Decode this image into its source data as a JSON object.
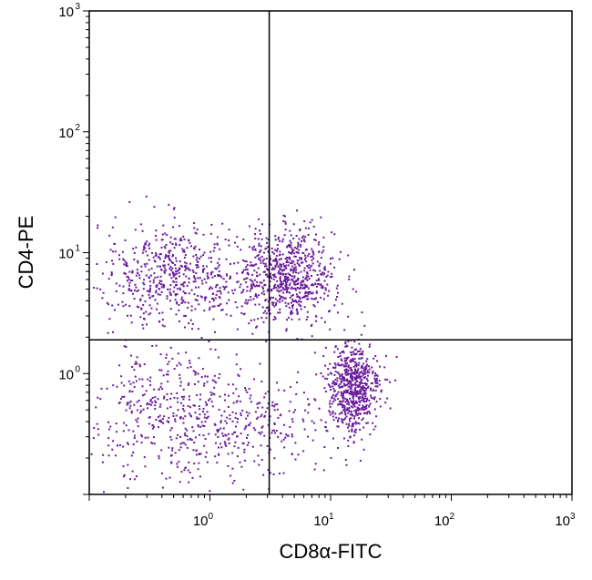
{
  "chart_data": {
    "type": "scatter",
    "title": "",
    "xlabel": "CD8α-FITC",
    "ylabel": "CD4-PE",
    "x_scale": "log",
    "y_scale": "log",
    "xlim": [
      0.1,
      1000
    ],
    "ylim": [
      0.1,
      1000
    ],
    "x_tick_labels": [
      {
        "value": 1,
        "base": "10",
        "exp": "0"
      },
      {
        "value": 10,
        "base": "10",
        "exp": "1"
      },
      {
        "value": 100,
        "base": "10",
        "exp": "2"
      },
      {
        "value": 1000,
        "base": "10",
        "exp": "3"
      }
    ],
    "y_tick_labels": [
      {
        "value": 1,
        "base": "10",
        "exp": "0"
      },
      {
        "value": 10,
        "base": "10",
        "exp": "1"
      },
      {
        "value": 100,
        "base": "10",
        "exp": "2"
      },
      {
        "value": 1000,
        "base": "10",
        "exp": "3"
      }
    ],
    "quadrant_gate": {
      "x": 3.1,
      "y": 1.9
    },
    "grid": false,
    "legend": "none",
    "point_color": "#6a1b9a",
    "populations": [
      {
        "x_center": 0.5,
        "y_center": 6.8,
        "x_spread": 0.9,
        "y_spread": 0.55,
        "count": 600
      },
      {
        "x_center": 4.4,
        "y_center": 6.5,
        "x_spread": 0.5,
        "y_spread": 0.5,
        "count": 700
      },
      {
        "x_center": 15,
        "y_center": 0.75,
        "x_spread": 0.3,
        "y_spread": 0.5,
        "count": 650
      },
      {
        "x_center": 0.45,
        "y_center": 0.45,
        "x_spread": 1.0,
        "y_spread": 0.7,
        "count": 450
      },
      {
        "x_center": 2.5,
        "y_center": 0.4,
        "x_spread": 0.8,
        "y_spread": 0.6,
        "count": 200
      }
    ]
  }
}
